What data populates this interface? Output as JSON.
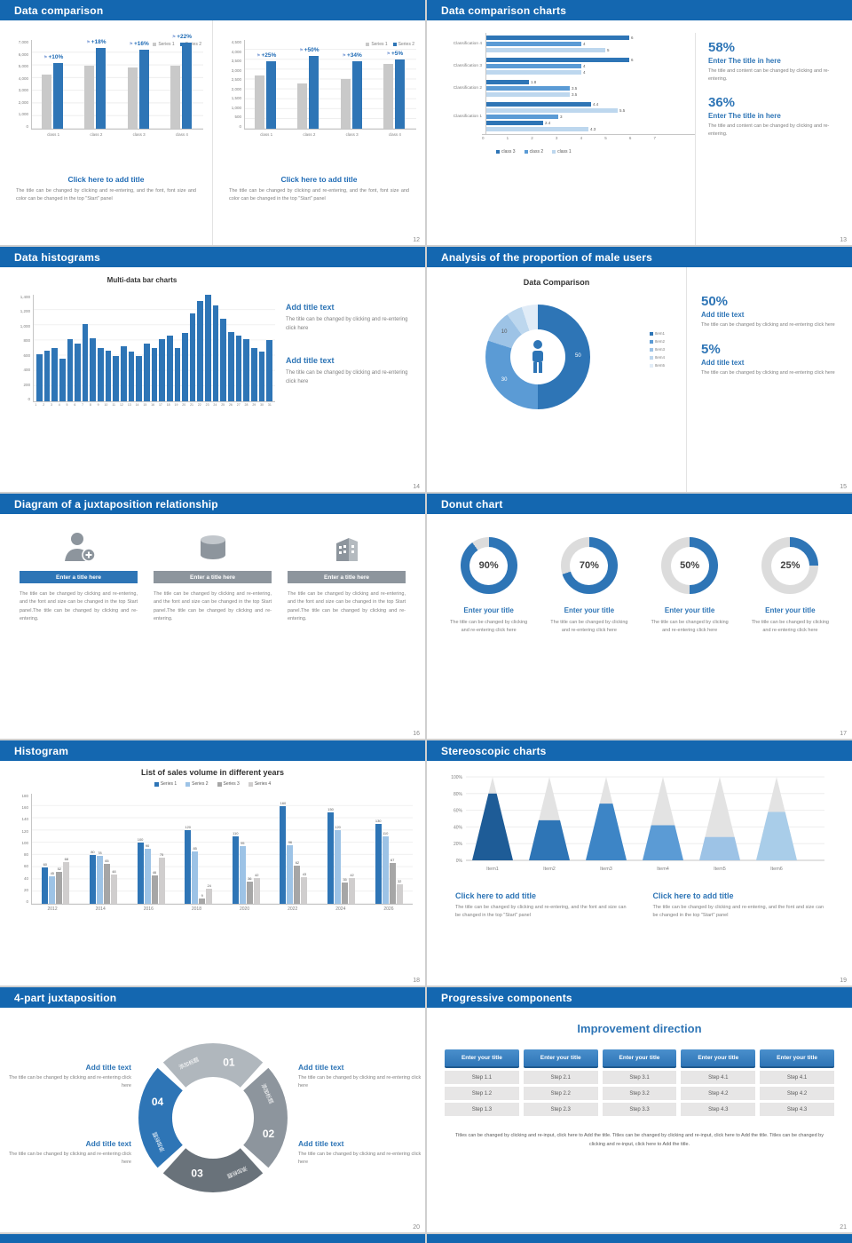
{
  "colors": {
    "header_bg": "#1467b0",
    "blue": "#2e75b6",
    "blue_mid": "#5b9bd5",
    "blue_light": "#9dc3e6",
    "blue_pale": "#bdd7ee",
    "gray_bar": "#c9c9c9",
    "gray_mid": "#a6a6a6",
    "gray_pale": "#d0cece",
    "ring_track": "#dcdcdc"
  },
  "slide12": {
    "title": "Data comparison",
    "page": "12",
    "charts": [
      {
        "legend": [
          "Series 1",
          "Series 2"
        ],
        "y_ticks": [
          "7,000",
          "6,000",
          "5,000",
          "4,000",
          "3,000",
          "2,000",
          "1,000",
          "0"
        ],
        "categories": [
          "class 1",
          "class 2",
          "class 3",
          "class 4"
        ],
        "series1": [
          4300,
          5000,
          4800,
          5000
        ],
        "series2": [
          5200,
          6400,
          6200,
          6800
        ],
        "badges": [
          "+10%",
          "+18%",
          "+16%",
          "+22%"
        ],
        "ymax": 7000
      },
      {
        "legend": [
          "Series 1",
          "Series 2"
        ],
        "y_ticks": [
          "4,500",
          "4,000",
          "3,500",
          "3,000",
          "2,500",
          "2,000",
          "1,500",
          "1,000",
          "500",
          "0"
        ],
        "categories": [
          "class 1",
          "class 2",
          "class 3",
          "class 4"
        ],
        "series1": [
          2700,
          2300,
          2500,
          3300
        ],
        "series2": [
          3400,
          3700,
          3400,
          3500
        ],
        "badges": [
          "+25%",
          "+50%",
          "+34%",
          "+5%"
        ],
        "ymax": 4500
      }
    ],
    "blocks": [
      {
        "heading": "Click here to add title",
        "body": "The title can be changed by clicking and re-entering, and the font, font size and color can be changed in the top \"Start\" panel"
      },
      {
        "heading": "Click here to add title",
        "body": "The title can be changed by clicking and re-entering, and the font, font size and color can be changed in the top \"Start\" panel"
      }
    ]
  },
  "slide13": {
    "title": "Data comparison charts",
    "page": "13",
    "chart": {
      "type": "bar-horizontal",
      "rows": [
        {
          "label": "Classification 4",
          "bars": [
            {
              "v": 6,
              "c": 0
            },
            {
              "v": 4,
              "c": 1
            },
            {
              "v": 5,
              "c": 2
            }
          ]
        },
        {
          "label": "Classification 3",
          "bars": [
            {
              "v": 6,
              "c": 0
            },
            {
              "v": 4,
              "c": 1
            },
            {
              "v": 4,
              "c": 2
            }
          ]
        },
        {
          "label": "Classification 2",
          "bars": [
            {
              "v": 1.8,
              "c": 0
            },
            {
              "v": 3.5,
              "c": 1
            },
            {
              "v": 3.5,
              "c": 2
            }
          ]
        },
        {
          "label": "Classification 1",
          "bars": [
            {
              "v": 4.4,
              "c": 0
            },
            {
              "v": 5.5,
              "c": 2
            },
            {
              "v": 3,
              "c": 1
            },
            {
              "v": 2.4,
              "c": 0
            },
            {
              "v": 4.3,
              "c": 2
            }
          ]
        }
      ],
      "x_ticks": [
        "0",
        "1",
        "2",
        "3",
        "4",
        "5",
        "6",
        "7"
      ],
      "xmax": 7,
      "legend": [
        {
          "name": "class 3",
          "c": 0
        },
        {
          "name": "class 2",
          "c": 1
        },
        {
          "name": "class 1",
          "c": 2
        }
      ]
    },
    "stats": [
      {
        "value": "58%",
        "heading": "Enter The title in here",
        "body": "The title and content can be changed by clicking and re-entering."
      },
      {
        "value": "36%",
        "heading": "Enter The title in here",
        "body": "The title and content can be changed by clicking and re-entering."
      }
    ]
  },
  "slide14": {
    "title": "Data histograms",
    "page": "14",
    "chart": {
      "type": "bar",
      "title": "Multi-data bar charts",
      "y_ticks": [
        "1,400",
        "1,200",
        "1,000",
        "800",
        "600",
        "400",
        "200",
        "0"
      ],
      "ymax": 1400,
      "x_labels": [
        "1",
        "2",
        "3",
        "4",
        "5",
        "6",
        "7",
        "8",
        "9",
        "10",
        "11",
        "12",
        "13",
        "14",
        "15",
        "16",
        "17",
        "18",
        "19",
        "20",
        "21",
        "22",
        "23",
        "24",
        "25",
        "26",
        "27",
        "28",
        "29",
        "30",
        "31"
      ],
      "values": [
        620,
        660,
        700,
        560,
        820,
        760,
        1010,
        830,
        700,
        660,
        600,
        720,
        650,
        600,
        760,
        700,
        820,
        860,
        700,
        900,
        1150,
        1320,
        1400,
        1260,
        1090,
        910,
        860,
        820,
        700,
        650,
        810
      ]
    },
    "blocks": [
      {
        "heading": "Add title text",
        "body": "The title can be changed by clicking and re-entering click here"
      },
      {
        "heading": "Add title text",
        "body": "The title can be changed by clicking and re-entering click here"
      }
    ]
  },
  "slide15": {
    "title": "Analysis of the proportion of male users",
    "page": "15",
    "chart": {
      "type": "pie",
      "title": "Data Comparison",
      "slices": [
        {
          "name": "Item1",
          "value": 50
        },
        {
          "name": "Item2",
          "value": 30
        },
        {
          "name": "Item3",
          "value": 10
        },
        {
          "name": "Item4",
          "value": 5
        },
        {
          "name": "Item5",
          "value": 5
        }
      ]
    },
    "stats": [
      {
        "value": "50%",
        "heading": "Add title text",
        "body": "The title can be changed by clicking and re-entering click here"
      },
      {
        "value": "5%",
        "heading": "Add title text",
        "body": "The title can be changed by clicking and re-entering click here"
      }
    ]
  },
  "slide16": {
    "title": "Diagram of a juxtaposition relationship",
    "page": "16",
    "columns": [
      {
        "icon": "person-plus-icon",
        "bar_label": "Enter a title here",
        "body": "The title can be changed by clicking and re-entering, and the font and size can be changed in the top Start panel.The title can be changed by clicking and re-entering."
      },
      {
        "icon": "database-icon",
        "bar_label": "Enter a title here",
        "body": "The title can be changed by clicking and re-entering, and the font and size can be changed in the top Start panel.The title can be changed by clicking and re-entering."
      },
      {
        "icon": "building-icon",
        "bar_label": "Enter a title here",
        "body": "The title can be changed by clicking and re-entering, and the font and size can be changed in the top Start panel.The title can be changed by clicking and re-entering."
      }
    ]
  },
  "slide17": {
    "title": "Donut chart",
    "page": "17",
    "donuts": [
      {
        "percent": 90,
        "label": "90%",
        "heading": "Enter your title",
        "body": "The title can be changed by clicking and re-entering click here"
      },
      {
        "percent": 70,
        "label": "70%",
        "heading": "Enter your title",
        "body": "The title can be changed by clicking and re-entering click here"
      },
      {
        "percent": 50,
        "label": "50%",
        "heading": "Enter your title",
        "body": "The title can be changed by clicking and re-entering click here"
      },
      {
        "percent": 25,
        "label": "25%",
        "heading": "Enter your title",
        "body": "The title can be changed by clicking and re-entering click here"
      }
    ]
  },
  "slide18": {
    "title": "Histogram",
    "page": "18",
    "chart": {
      "type": "bar",
      "title": "List of sales volume in different years",
      "legend": [
        "Series 1",
        "Series 2",
        "Series 3",
        "Series 4"
      ],
      "categories": [
        "2012",
        "2014",
        "2016",
        "2018",
        "2020",
        "2022",
        "2024",
        "2026"
      ],
      "series": [
        {
          "name": "Series 1",
          "values": [
            60,
            80,
            100,
            120,
            110,
            160,
            150,
            130
          ]
        },
        {
          "name": "Series 2",
          "values": [
            45,
            78,
            90,
            85,
            95,
            96,
            120,
            110
          ]
        },
        {
          "name": "Series 3",
          "values": [
            52,
            65,
            46,
            9,
            36,
            62,
            35,
            67
          ]
        },
        {
          "name": "Series 4",
          "values": [
            68,
            48,
            75,
            24,
            42,
            43,
            42,
            32
          ]
        }
      ],
      "y_ticks": [
        "180",
        "160",
        "140",
        "120",
        "100",
        "80",
        "60",
        "40",
        "20",
        "0"
      ],
      "ymax": 180
    }
  },
  "slide19": {
    "title": "Stereoscopic charts",
    "page": "19",
    "chart": {
      "type": "cone",
      "categories": [
        "Item1",
        "Item2",
        "Item3",
        "Item4",
        "Item5",
        "Item6"
      ],
      "values": [
        80,
        48,
        68,
        42,
        28,
        58
      ],
      "y_ticks": [
        "100%",
        "80%",
        "60%",
        "40%",
        "20%",
        "0%"
      ]
    },
    "blocks": [
      {
        "heading": "Click here to add title",
        "body": "The title can be changed by clicking and re-entering, and the font and size can be changed in the top \"Start\" panel"
      },
      {
        "heading": "Click here to add title",
        "body": "The title can be changed by clicking and re-entering, and the font and size can be changed in the top \"Start\" panel"
      }
    ]
  },
  "slide20": {
    "title": "4-part juxtaposition",
    "page": "20",
    "wheel": {
      "segments": [
        {
          "num": "01",
          "label": "添加标题",
          "color": "#b0b7bd"
        },
        {
          "num": "02",
          "label": "添加标题",
          "color": "#8d959d"
        },
        {
          "num": "03",
          "label": "添加标题",
          "color": "#69727a"
        },
        {
          "num": "04",
          "label": "添加标题",
          "color": "#2e75b6"
        }
      ]
    },
    "blocks_left": [
      {
        "heading": "Add title text",
        "body": "The title can be changed by clicking and re-entering click here"
      },
      {
        "heading": "Add title text",
        "body": "The title can be changed by clicking and re-entering click here"
      }
    ],
    "blocks_right": [
      {
        "heading": "Add title text",
        "body": "The title can be changed by clicking and re-entering click here"
      },
      {
        "heading": "Add title text",
        "body": "The title can be changed by clicking and re-entering click here"
      }
    ]
  },
  "slide21": {
    "title": "Progressive components",
    "page": "21",
    "heading": "Improvement direction",
    "columns": [
      {
        "header": "Enter your title",
        "steps": [
          "Step 1.1",
          "Step 1.2",
          "Step 1.3"
        ]
      },
      {
        "header": "Enter your title",
        "steps": [
          "Step 2.1",
          "Step 2.2",
          "Step 2.3"
        ]
      },
      {
        "header": "Enter your title",
        "steps": [
          "Step 3.1",
          "Step 3.2",
          "Step 3.3"
        ]
      },
      {
        "header": "Enter your title",
        "steps": [
          "Step 4.1",
          "Step 4.2",
          "Step 4.3"
        ]
      },
      {
        "header": "Enter your title",
        "steps": [
          "Step 4.1",
          "Step 4.2",
          "Step 4.3"
        ]
      }
    ],
    "footer": "Titles can be changed by clicking and re-input, click here to Add the title. Titles can be changed by clicking and re-input, click here to Add the title. Titles can be changed by clicking and re-input, click here to Add the title."
  }
}
